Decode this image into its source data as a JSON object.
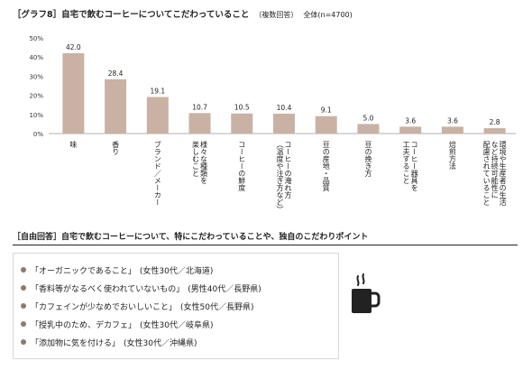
{
  "header": {
    "tag": "［グラフ8］",
    "title": "自宅で飲むコーヒーについてこだわっていること",
    "subtitle": "（複数回答）",
    "total": "全体(n=4700)"
  },
  "chart_data": {
    "type": "bar",
    "categories": [
      "味",
      "香り",
      "ブランド／メーカー",
      "様々な種類を楽しむこと",
      "コーヒーの鮮度",
      "コーヒーの淹れ方（温度や注ぎ方など）",
      "豆の産地・品質",
      "豆の挽き方",
      "コーヒー器具を工夫すること",
      "焙煎方法",
      "環境や生産者の生活など持続可能性に配慮されていること"
    ],
    "category_lines": [
      [
        "味"
      ],
      [
        "香り"
      ],
      [
        "ブランド／メーカー"
      ],
      [
        "様々な種類を",
        "楽しむこと"
      ],
      [
        "コーヒーの鮮度"
      ],
      [
        "コーヒーの淹れ方",
        "（温度や注ぎ方など）"
      ],
      [
        "豆の産地・品質"
      ],
      [
        "豆の挽き方"
      ],
      [
        "コーヒー器具を",
        "工夫すること"
      ],
      [
        "焙煎方法"
      ],
      [
        "環境や生産者の生活",
        "など持続可能性に",
        "配慮されていること"
      ]
    ],
    "values": [
      42.0,
      28.4,
      19.1,
      10.7,
      10.5,
      10.4,
      9.1,
      5.0,
      3.6,
      3.6,
      2.8
    ],
    "value_labels": [
      "42.0",
      "28.4",
      "19.1",
      "10.7",
      "10.5",
      "10.4",
      "9.1",
      "5.0",
      "3.6",
      "3.6",
      "2.8"
    ],
    "yticks": [
      "0%",
      "10%",
      "20%",
      "30%",
      "40%",
      "50%"
    ],
    "ylim": [
      0,
      50
    ],
    "bar_color": "#c9b2a4",
    "grid": false
  },
  "freeform": {
    "tag": "［自由回答］",
    "title": "自宅で飲むコーヒーについて、特にこだわっていることや、独自のこだわりポイント",
    "items": [
      {
        "quote": "「オーガニックであること」",
        "who": "(女性30代／北海道)"
      },
      {
        "quote": "「香料等がなるべく使われていないもの」",
        "who": "(男性40代／長野県)"
      },
      {
        "quote": "「カフェインが少なめでおいしいこと」",
        "who": "(女性50代／長野県)"
      },
      {
        "quote": "「授乳中のため、デカフェ」",
        "who": "(女性30代／岐阜県)"
      },
      {
        "quote": "「添加物に気を付ける」",
        "who": "(女性30代／沖縄県)"
      }
    ],
    "icon": "coffee-cup-icon",
    "bullet_color": "#8a7b6e"
  }
}
